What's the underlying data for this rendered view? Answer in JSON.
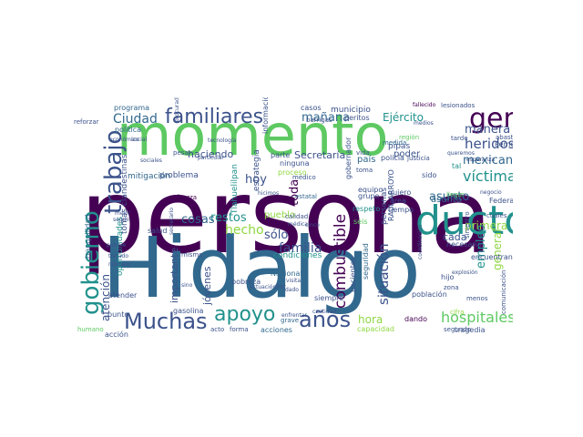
{
  "words": [
    {
      "text": "persona",
      "color": "#440154"
    },
    {
      "text": "Hidalgo",
      "color": "#31688e"
    },
    {
      "text": "momento",
      "color": "#5ec962"
    },
    {
      "text": "gobierno",
      "color": "#21918c"
    },
    {
      "text": "trabajo",
      "color": "#3b528b"
    },
    {
      "text": "ducto",
      "color": "#21918c"
    },
    {
      "text": "gente",
      "color": "#440154"
    },
    {
      "text": "familiares",
      "color": "#3b528b"
    },
    {
      "text": "Muchas",
      "color": "#3b528b"
    },
    {
      "text": "apoyo",
      "color": "#21918c"
    },
    {
      "text": "años",
      "color": "#3b528b"
    },
    {
      "text": "familia",
      "color": "#3b528b"
    },
    {
      "text": "hospitales",
      "color": "#5ec962"
    },
    {
      "text": "víctima",
      "color": "#21918c"
    },
    {
      "text": "combustible",
      "color": "#440154"
    },
    {
      "text": "heridos",
      "color": "#3b528b"
    },
    {
      "text": "mexicano",
      "color": "#31688e"
    },
    {
      "text": "manera",
      "color": "#3b528b"
    },
    {
      "text": "asunto",
      "color": "#31688e"
    },
    {
      "text": "situación",
      "color": "#3b528b"
    },
    {
      "text": "Ciudad",
      "color": "#31688e"
    },
    {
      "text": "mañana",
      "color": "#31688e"
    },
    {
      "text": "Ejército",
      "color": "#21918c"
    },
    {
      "text": "hecho",
      "color": "#90d743"
    },
    {
      "text": "restos",
      "color": "#21918c"
    },
    {
      "text": "hoy",
      "color": "#3b528b"
    },
    {
      "text": "cosas",
      "color": "#31688e"
    },
    {
      "text": "sólo",
      "color": "#3b528b"
    },
    {
      "text": "toda",
      "color": "#440154"
    },
    {
      "text": "primera",
      "color": "#90d743"
    },
    {
      "text": "empleo",
      "color": "#21918c"
    },
    {
      "text": "general",
      "color": "#90d743"
    },
    {
      "text": "corrupción",
      "color": "#21918c"
    },
    {
      "text": "atención",
      "color": "#3b528b"
    },
    {
      "text": "importante",
      "color": "#3b528b"
    },
    {
      "text": "jóvenes",
      "color": "#3b528b"
    },
    {
      "text": "haciendo",
      "color": "#3b528b"
    },
    {
      "text": "Secretaría",
      "color": "#3b528b"
    },
    {
      "text": "hora",
      "color": "#90d743"
    },
    {
      "text": "cada",
      "color": "#3b528b"
    },
    {
      "text": "país",
      "color": "#31688e"
    },
    {
      "text": "poder",
      "color": "#3b528b"
    },
    {
      "text": "municipio",
      "color": "#3b528b"
    },
    {
      "text": "casos",
      "color": "#3b528b"
    },
    {
      "text": "problema",
      "color": "#3b528b"
    },
    {
      "text": "mitigación",
      "color": "#31688e"
    },
    {
      "text": "Nacional",
      "color": "#31688e"
    },
    {
      "text": "gasolina",
      "color": "#3b528b"
    },
    {
      "text": "pipas",
      "color": "#3b528b"
    },
    {
      "text": "personas",
      "color": "#3b528b"
    },
    {
      "text": "pueblo",
      "color": "#90d743"
    },
    {
      "text": "Tlahuelilpan",
      "color": "#21918c"
    },
    {
      "text": "estrategia",
      "color": "#3b528b"
    },
    {
      "text": "condiciones",
      "color": "#21918c"
    },
    {
      "text": "acciones",
      "color": "#31688e"
    },
    {
      "text": "programa",
      "color": "#31688e"
    },
    {
      "text": "política",
      "color": "#31688e"
    },
    {
      "text": "información",
      "color": "#3b528b"
    },
    {
      "text": "ninguna",
      "color": "#3b528b"
    },
    {
      "text": "tomas clandestinas",
      "color": "#3b528b"
    },
    {
      "text": "oportunidades",
      "color": "#21918c"
    },
    {
      "text": "tranquilidad",
      "color": "#31688e"
    },
    {
      "text": "Federal",
      "color": "#3b528b"
    },
    {
      "text": "Pemex",
      "color": "#3b528b"
    },
    {
      "text": "asunto",
      "color": "#31688e"
    },
    {
      "text": "RAÚL ARROYO",
      "color": "#3b528b"
    },
    {
      "text": "seguridad",
      "color": "#31688e"
    },
    {
      "text": "pacientes",
      "color": "#3b528b"
    },
    {
      "text": "población",
      "color": "#3b528b"
    },
    {
      "text": "tragedia",
      "color": "#3b528b"
    },
    {
      "text": "necesario",
      "color": "#3b528b"
    },
    {
      "text": "encuentran",
      "color": "#3b528b"
    },
    {
      "text": "gobernador",
      "color": "#3b528b"
    },
    {
      "text": "policía",
      "color": "#3b528b"
    },
    {
      "text": "grupo",
      "color": "#3b528b"
    },
    {
      "text": "tiempo",
      "color": "#3b528b"
    },
    {
      "text": "área",
      "color": "#3b528b"
    },
    {
      "text": "quiero",
      "color": "#3b528b"
    },
    {
      "text": "equipo",
      "color": "#3b528b"
    },
    {
      "text": "respeto",
      "color": "#21918c"
    },
    {
      "text": "seis",
      "color": "#5ec962"
    },
    {
      "text": "punto",
      "color": "#3b528b"
    },
    {
      "text": "atender",
      "color": "#3b528b"
    },
    {
      "text": "acción",
      "color": "#3b528b"
    },
    {
      "text": "pobreza",
      "color": "#3b528b"
    },
    {
      "text": "siempre",
      "color": "#3b528b"
    },
    {
      "text": "segundo",
      "color": "#3b528b"
    },
    {
      "text": "capacidad",
      "color": "#90d743"
    },
    {
      "text": "dando",
      "color": "#440154"
    },
    {
      "text": "peritos",
      "color": "#3b528b"
    },
    {
      "text": "vida",
      "color": "#3b528b"
    },
    {
      "text": "medida",
      "color": "#31688e"
    },
    {
      "text": "región",
      "color": "#5ec962"
    },
    {
      "text": "toma",
      "color": "#3b528b"
    },
    {
      "text": "médico",
      "color": "#3b528b"
    },
    {
      "text": "proceso",
      "color": "#90d743"
    },
    {
      "text": "parte",
      "color": "#3b528b"
    },
    {
      "text": "estatal",
      "color": "#31688e"
    },
    {
      "text": "calidad",
      "color": "#3b528b"
    },
    {
      "text": "médica",
      "color": "#3b528b"
    },
    {
      "text": "fuerza",
      "color": "#440154"
    },
    {
      "text": "salud",
      "color": "#3b528b"
    },
    {
      "text": "mismo",
      "color": "#3b528b"
    },
    {
      "text": "dar",
      "color": "#3b528b"
    },
    {
      "text": "grave",
      "color": "#31688e"
    },
    {
      "text": "forma",
      "color": "#3b528b"
    },
    {
      "text": "acto",
      "color": "#3b528b"
    },
    {
      "text": "humano",
      "color": "#5ec962"
    },
    {
      "text": "cifra",
      "color": "#90d743"
    },
    {
      "text": "menos",
      "color": "#3b528b"
    },
    {
      "text": "hijo",
      "color": "#3b528b"
    },
    {
      "text": "zona",
      "color": "#3b528b"
    },
    {
      "text": "explosión",
      "color": "#3b528b"
    },
    {
      "text": "comunicación",
      "color": "#3b528b"
    },
    {
      "text": "siniestro",
      "color": "#3b528b"
    },
    {
      "text": "justicia",
      "color": "#3b528b"
    },
    {
      "text": "llegar",
      "color": "#5ec962"
    },
    {
      "text": "sido",
      "color": "#3b528b"
    },
    {
      "text": "cuales",
      "color": "#3b528b"
    },
    {
      "text": "tal",
      "color": "#21918c"
    },
    {
      "text": "abasto",
      "color": "#3b528b"
    },
    {
      "text": "tarde",
      "color": "#3b528b"
    },
    {
      "text": "lesionados",
      "color": "#3b528b"
    },
    {
      "text": "fallecido",
      "color": "#440154"
    },
    {
      "text": "medios",
      "color": "#3b528b"
    },
    {
      "text": "reforzar",
      "color": "#3b528b"
    },
    {
      "text": "barrigas",
      "color": "#3b528b"
    },
    {
      "text": "hicimos",
      "color": "#3b528b"
    },
    {
      "text": "cinco",
      "color": "#3b528b"
    },
    {
      "text": "tratado",
      "color": "#3b528b"
    },
    {
      "text": "número",
      "color": "#3b528b"
    },
    {
      "text": "posible",
      "color": "#3b528b"
    },
    {
      "text": "mejor",
      "color": "#3b528b"
    },
    {
      "text": "seguir",
      "color": "#3b528b"
    },
    {
      "text": "pesar",
      "color": "#3b528b"
    },
    {
      "text": "enfrentar",
      "color": "#3b528b"
    },
    {
      "text": "cantidad",
      "color": "#3b528b"
    },
    {
      "text": "sino",
      "color": "#3b528b"
    },
    {
      "text": "hablar",
      "color": "#3b528b"
    },
    {
      "text": "actuación",
      "color": "#3b528b"
    },
    {
      "text": "dado",
      "color": "#3b528b"
    },
    {
      "text": "sociales",
      "color": "#3b528b"
    },
    {
      "text": "tecnología",
      "color": "#3b528b"
    },
    {
      "text": "particular",
      "color": "#3b528b"
    },
    {
      "text": "procuraduría",
      "color": "#3b528b"
    },
    {
      "text": "económico",
      "color": "#3b528b"
    },
    {
      "text": "social",
      "color": "#3b528b"
    },
    {
      "text": "secretario",
      "color": "#3b528b"
    },
    {
      "text": "coordinación",
      "color": "#3b528b"
    },
    {
      "text": "esperanza",
      "color": "#3b528b"
    },
    {
      "text": "queremos",
      "color": "#3b528b"
    },
    {
      "text": "visita",
      "color": "#3b528b"
    },
    {
      "text": "negocio",
      "color": "#3b528b"
    }
  ]
}
